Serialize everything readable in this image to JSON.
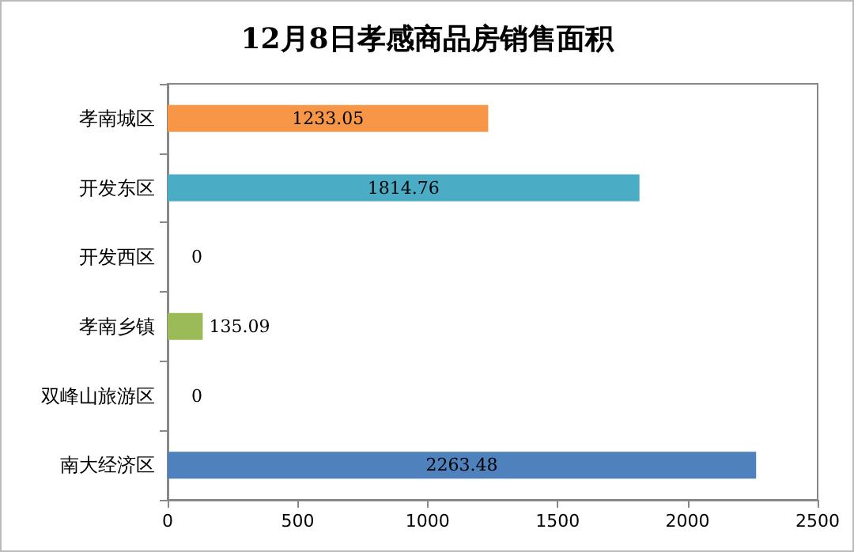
{
  "chart_data": {
    "type": "bar",
    "orientation": "horizontal",
    "title": "12月8日孝感商品房销售面积",
    "categories": [
      "孝南城区",
      "开发东区",
      "开发西区",
      "孝南乡镇",
      "双峰山旅游区",
      "南大经济区"
    ],
    "values": [
      1233.05,
      1814.76,
      0,
      135.09,
      0,
      2263.48
    ],
    "colors": [
      "#f79646",
      "#4bacc6",
      "#9bbb59",
      "#9bbb59",
      "#9bbb59",
      "#4f81bd"
    ],
    "xlim": [
      0,
      2500
    ],
    "xticks": [
      0,
      500,
      1000,
      1500,
      2000,
      2500
    ],
    "data_labels": true,
    "grid": false
  }
}
